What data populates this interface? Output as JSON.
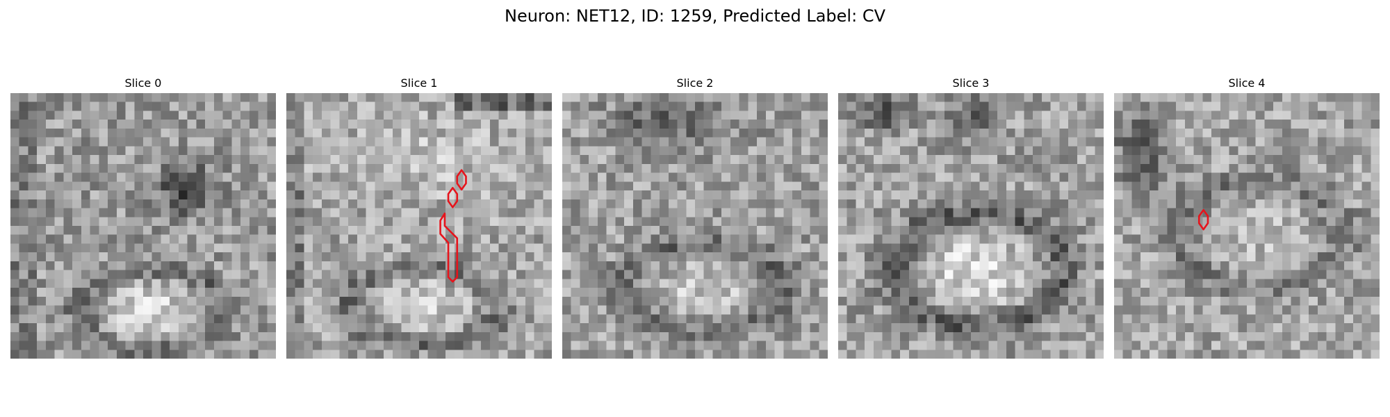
{
  "figure": {
    "title": "Neuron: NET12, ID: 1259, Predicted Label: CV"
  },
  "colors": {
    "background": "#ffffff",
    "outline": "#e6141c",
    "colormap": "grayscale"
  },
  "panels": [
    {
      "title": "Slice 0",
      "has_outline": false
    },
    {
      "title": "Slice 1",
      "has_outline": true
    },
    {
      "title": "Slice 2",
      "has_outline": false
    },
    {
      "title": "Slice 3",
      "has_outline": false
    },
    {
      "title": "Slice 4",
      "has_outline": true
    }
  ]
}
